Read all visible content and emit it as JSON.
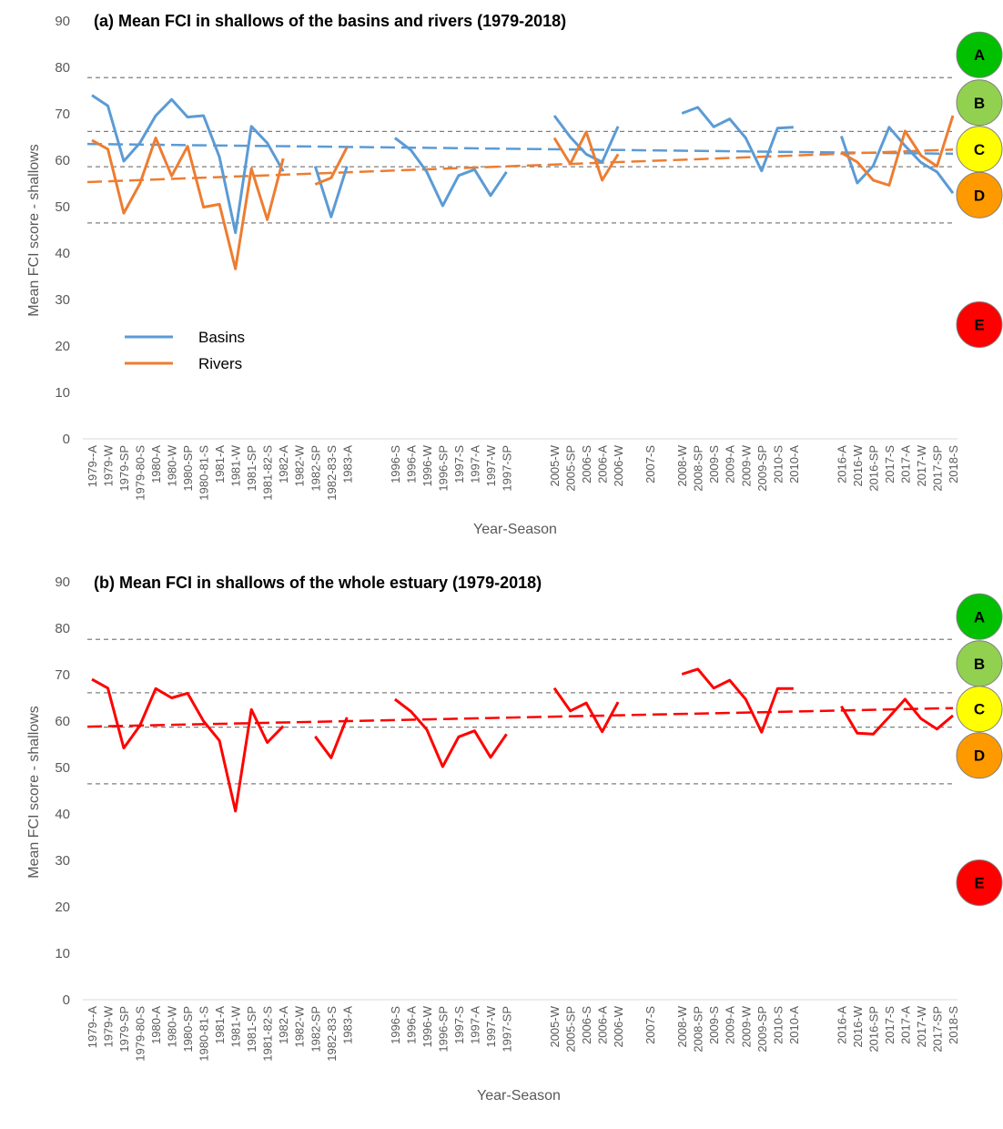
{
  "chart_data": [
    {
      "type": "line",
      "title": "(a) Mean FCI in shallows of the basins and rivers (1979-2018)",
      "xlabel": "Year-Season",
      "ylabel": "Mean  FCI score - shallows",
      "ylim": [
        0,
        90
      ],
      "yticks": [
        0,
        10,
        20,
        30,
        40,
        50,
        60,
        70,
        80,
        90
      ],
      "grid": false,
      "legend_position": "lower-left",
      "categories": [
        "1979--A",
        "1979-W",
        "1979-SP",
        "1979-80-S",
        "1980-A",
        "1980-W",
        "1980-SP",
        "1980-81-S",
        "1981-A",
        "1981-W",
        "1981-SP",
        "1981-82-S",
        "1982-A",
        "1982-W",
        "1982-SP",
        "1982-83-S",
        "1983-A",
        "",
        "",
        "1996-S",
        "1996-A",
        "1996-W",
        "1996-SP",
        "1997-S",
        "1997-A",
        "1997-W",
        "1997-SP",
        "",
        "",
        "2005-W",
        "2005-SP",
        "2006-S",
        "2006-A",
        "2006-W",
        "",
        "2007-S",
        "",
        "2008-W",
        "2008-SP",
        "2009-S",
        "2009-A",
        "2009-W",
        "2009-SP",
        "2010-S",
        "2010-A",
        "",
        "",
        "2016-A",
        "2016-W",
        "2016-SP",
        "2017-S",
        "2017-A",
        "2017-W",
        "2017-SP",
        "2018-S"
      ],
      "series": [
        {
          "name": "Basins",
          "color": "#5B9BD5",
          "values": [
            74,
            71.7,
            59.8,
            63.7,
            69.6,
            73.1,
            69.3,
            69.6,
            60.7,
            44.4,
            67.3,
            63.7,
            57.6,
            null,
            58.7,
            47.8,
            58.7,
            null,
            null,
            64.8,
            62.2,
            57.5,
            50.2,
            56.7,
            58,
            52.4,
            57.5,
            null,
            null,
            69.6,
            65,
            61.3,
            59.6,
            67.3,
            null,
            null,
            null,
            70.1,
            71.4,
            67.2,
            68.9,
            64.8,
            57.7,
            66.9,
            67.1,
            null,
            null,
            65.2,
            55.1,
            58.8,
            67.1,
            63.1,
            59.5,
            57.5,
            52.9
          ]
        },
        {
          "name": "Rivers",
          "color": "#ED7D31",
          "values": [
            64.3,
            62.4,
            48.6,
            54.9,
            64.8,
            56.6,
            63,
            49.9,
            50.5,
            36.6,
            58.2,
            47.2,
            60.4,
            null,
            54.8,
            56.2,
            62.8,
            null,
            null,
            null,
            null,
            null,
            null,
            null,
            null,
            null,
            null,
            null,
            null,
            64.8,
            59.2,
            66.1,
            55.7,
            61.3,
            null,
            null,
            null,
            null,
            null,
            null,
            null,
            null,
            null,
            null,
            null,
            null,
            null,
            61.6,
            59.6,
            55.7,
            54.6,
            66.3,
            61,
            58.7,
            69.6
          ]
        }
      ],
      "trendlines": [
        {
          "series": "Basins",
          "color": "#5B9BD5",
          "start": 63.5,
          "end": 61.4
        },
        {
          "series": "Rivers",
          "color": "#ED7D31",
          "start": 55.3,
          "end": 62.3
        }
      ],
      "thresholds": [
        77.8,
        66.2,
        58.6,
        46.5
      ],
      "grades": [
        {
          "label": "A",
          "color": "#00C000",
          "y": 82.7
        },
        {
          "label": "B",
          "color": "#92D050",
          "y": 72.4
        },
        {
          "label": "C",
          "color": "#FFFF00",
          "y": 62.4
        },
        {
          "label": "D",
          "color": "#FF9900",
          "y": 52.5
        },
        {
          "label": "E",
          "color": "#FF0000",
          "y": 24.6
        }
      ]
    },
    {
      "type": "line",
      "title": "(b) Mean FCI in shallows of the whole estuary (1979-2018)",
      "xlabel": "Year-Season",
      "ylabel": "Mean FCI score - shallows",
      "ylim": [
        0,
        90
      ],
      "yticks": [
        0,
        10,
        20,
        30,
        40,
        50,
        60,
        70,
        80,
        90
      ],
      "grid": false,
      "categories": [
        "1979--A",
        "1979-W",
        "1979-SP",
        "1979-80-S",
        "1980-A",
        "1980-W",
        "1980-SP",
        "1980-81-S",
        "1981-A",
        "1981-W",
        "1981-SP",
        "1981-82-S",
        "1982-A",
        "1982-W",
        "1982-SP",
        "1982-83-S",
        "1983-A",
        "",
        "",
        "1996-S",
        "1996-A",
        "1996-W",
        "1996-SP",
        "1997-S",
        "1997-A",
        "1997-W",
        "1997-SP",
        "",
        "",
        "2005-W",
        "2005-SP",
        "2006-S",
        "2006-A",
        "2006-W",
        "",
        "2007-S",
        "",
        "2008-W",
        "2008-SP",
        "2009-S",
        "2009-A",
        "2009-W",
        "2009-SP",
        "2010-S",
        "2010-A",
        "",
        "",
        "2016-A",
        "2016-W",
        "2016-SP",
        "2017-S",
        "2017-A",
        "2017-W",
        "2017-SP",
        "2018-S"
      ],
      "series": [
        {
          "color": "#FF0000",
          "values": [
            69,
            67.1,
            54.2,
            59,
            67,
            65,
            66,
            60,
            55.8,
            40.6,
            62.5,
            55.4,
            58.9,
            null,
            56.7,
            52.1,
            60.8,
            null,
            null,
            64.7,
            62.1,
            58.2,
            50.2,
            56.6,
            57.9,
            52.2,
            57.2,
            null,
            null,
            67.1,
            62.2,
            63.9,
            57.7,
            64.1,
            null,
            null,
            null,
            70.1,
            71.2,
            67.1,
            68.8,
            64.7,
            57.6,
            67,
            67,
            null,
            null,
            63.2,
            57.4,
            57.2,
            60.9,
            64.7,
            60.5,
            58.3,
            61.2
          ]
        }
      ],
      "trendlines": [
        {
          "color": "#FF0000",
          "start": 58.8,
          "end": 62.8
        }
      ],
      "thresholds": [
        77.6,
        66.1,
        58.7,
        46.5
      ],
      "grades": [
        {
          "label": "A",
          "color": "#00C000",
          "y": 82.5
        },
        {
          "label": "B",
          "color": "#92D050",
          "y": 72.4
        },
        {
          "label": "C",
          "color": "#FFFF00",
          "y": 62.6
        },
        {
          "label": "D",
          "color": "#FF9900",
          "y": 52.6
        },
        {
          "label": "E",
          "color": "#FF0000",
          "y": 25.2
        }
      ]
    }
  ]
}
